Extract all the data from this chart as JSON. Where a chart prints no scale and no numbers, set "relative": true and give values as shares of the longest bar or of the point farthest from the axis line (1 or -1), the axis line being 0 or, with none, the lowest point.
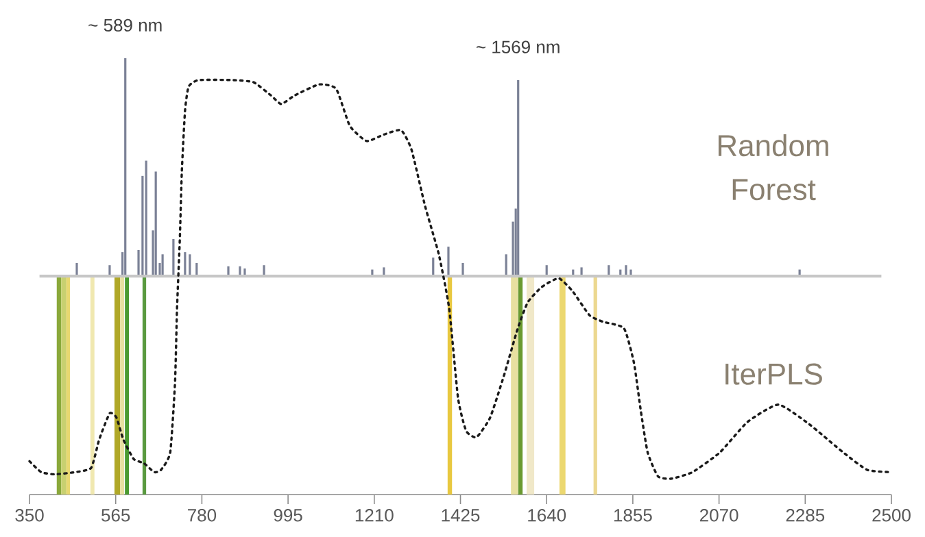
{
  "chart_data": {
    "type": "bar",
    "relative": true,
    "xlim": [
      350,
      2500
    ],
    "xticks": [
      350,
      565,
      780,
      995,
      1210,
      1425,
      1640,
      1855,
      2070,
      2285,
      2500
    ],
    "series": [
      {
        "color": "#7b8196",
        "x": [
          468,
          550,
          582,
          589,
          622,
          632,
          641,
          658,
          665,
          675,
          682,
          709,
          738,
          750,
          767,
          846,
          875,
          887,
          935,
          1205,
          1234,
          1357,
          1395,
          1431,
          1539,
          1556,
          1563,
          1569,
          1640,
          1706,
          1727,
          1795,
          1824,
          1838,
          1850,
          2271
        ],
        "values": [
          0.06,
          0.05,
          0.11,
          1.0,
          0.12,
          0.46,
          0.53,
          0.21,
          0.48,
          0.06,
          0.1,
          0.17,
          0.11,
          0.1,
          0.06,
          0.045,
          0.045,
          0.035,
          0.05,
          0.03,
          0.04,
          0.085,
          0.135,
          0.06,
          0.1,
          0.25,
          0.31,
          0.9,
          0.05,
          0.03,
          0.04,
          0.05,
          0.03,
          0.05,
          0.03,
          0.03
        ]
      },
      {
        "type": "line",
        "color": "#1a1a1a",
        "line_style": "dotted",
        "x": [
          350,
          379,
          413,
          465,
          504,
          524,
          550,
          567,
          584,
          610,
          636,
          661,
          678,
          701,
          713,
          718,
          725,
          730,
          738,
          747,
          772,
          858,
          909,
          952,
          978,
          1012,
          1072,
          1115,
          1149,
          1191,
          1234,
          1277,
          1303,
          1337,
          1371,
          1397,
          1419,
          1439,
          1465,
          1499,
          1533,
          1568,
          1593,
          1628,
          1670,
          1705,
          1747,
          1781,
          1833,
          1858,
          1875,
          1892,
          1918,
          1952,
          2004,
          2072,
          2141,
          2218,
          2295,
          2380,
          2440,
          2500
        ],
        "values": [
          -0.85,
          -0.9,
          -0.91,
          -0.9,
          -0.88,
          -0.75,
          -0.63,
          -0.65,
          -0.75,
          -0.84,
          -0.86,
          -0.9,
          -0.89,
          -0.81,
          -0.49,
          -0.15,
          0.17,
          0.48,
          0.76,
          0.87,
          0.9,
          0.9,
          0.89,
          0.83,
          0.79,
          0.83,
          0.88,
          0.86,
          0.69,
          0.62,
          0.65,
          0.67,
          0.58,
          0.32,
          0.1,
          -0.15,
          -0.56,
          -0.71,
          -0.74,
          -0.65,
          -0.46,
          -0.24,
          -0.12,
          -0.05,
          -0.01,
          -0.07,
          -0.18,
          -0.21,
          -0.24,
          -0.4,
          -0.62,
          -0.81,
          -0.92,
          -0.93,
          -0.9,
          -0.81,
          -0.67,
          -0.59,
          -0.68,
          -0.81,
          -0.89,
          -0.9
        ]
      }
    ],
    "bands": [
      {
        "axis": "x",
        "from": 418,
        "to": 429,
        "color": "#8aa83a"
      },
      {
        "axis": "x",
        "from": 429,
        "to": 442,
        "color": "#c8d070"
      },
      {
        "axis": "x",
        "from": 442,
        "to": 451,
        "color": "#e8d870"
      },
      {
        "axis": "x",
        "from": 502,
        "to": 512,
        "color": "#f0e8b0"
      },
      {
        "axis": "x",
        "from": 562,
        "to": 576,
        "color": "#b0a828"
      },
      {
        "axis": "x",
        "from": 576,
        "to": 586,
        "color": "#e8e0a0"
      },
      {
        "axis": "x",
        "from": 588,
        "to": 598,
        "color": "#4a9a30"
      },
      {
        "axis": "x",
        "from": 632,
        "to": 641,
        "color": "#5a9a40"
      },
      {
        "axis": "x",
        "from": 1393,
        "to": 1404,
        "color": "#e8c840"
      },
      {
        "axis": "x",
        "from": 1551,
        "to": 1568,
        "color": "#e8e0a0"
      },
      {
        "axis": "x",
        "from": 1569,
        "to": 1580,
        "color": "#6a9a30"
      },
      {
        "axis": "x",
        "from": 1590,
        "to": 1609,
        "color": "#f0e8c8"
      },
      {
        "axis": "x",
        "from": 1672,
        "to": 1687,
        "color": "#ecd870"
      },
      {
        "axis": "x",
        "from": 1757,
        "to": 1766,
        "color": "#ecd890"
      }
    ],
    "annotations": [
      {
        "text": "~ 589 nm",
        "x": 589,
        "y": 1.0
      },
      {
        "text": "~ 1569 nm",
        "x": 1569,
        "y": 0.9
      },
      "Random Forest",
      "IterPLS"
    ]
  }
}
